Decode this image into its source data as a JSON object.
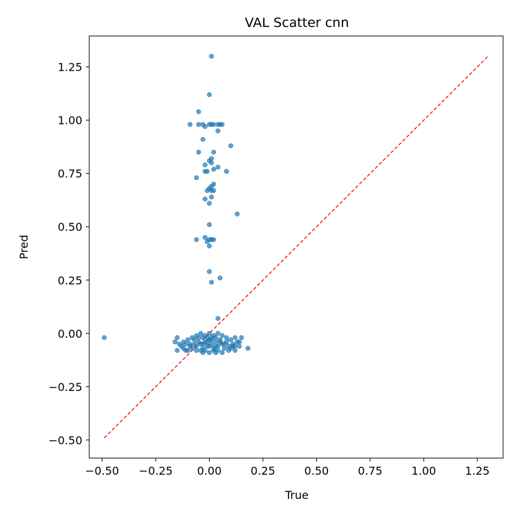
{
  "chart_data": {
    "type": "scatter",
    "title": "VAL Scatter cnn",
    "xlabel": "True",
    "ylabel": "Pred",
    "xlim": [
      -0.56,
      1.37
    ],
    "ylim": [
      -0.585,
      1.395
    ],
    "x_ticks": [
      -0.5,
      -0.25,
      0.0,
      0.25,
      0.5,
      0.75,
      1.0,
      1.25
    ],
    "x_tick_labels": [
      "−0.50",
      "−0.25",
      "0.00",
      "0.25",
      "0.50",
      "0.75",
      "1.00",
      "1.25"
    ],
    "y_ticks": [
      -0.5,
      -0.25,
      0.0,
      0.25,
      0.5,
      0.75,
      1.0,
      1.25
    ],
    "y_tick_labels": [
      "−0.50",
      "−0.25",
      "0.00",
      "0.25",
      "0.50",
      "0.75",
      "1.00",
      "1.25"
    ],
    "grid": false,
    "point_color": "#1f77b4",
    "reference_line": {
      "from": [
        -0.49,
        -0.49
      ],
      "to": [
        1.3,
        1.3
      ],
      "color": "#ff0000",
      "style": "dashed"
    },
    "series": [
      {
        "points": [
          [
            0.01,
            1.3
          ],
          [
            0.0,
            1.12
          ],
          [
            -0.05,
            1.04
          ],
          [
            -0.09,
            0.98
          ],
          [
            -0.05,
            0.98
          ],
          [
            -0.03,
            0.98
          ],
          [
            -0.02,
            0.97
          ],
          [
            0.0,
            0.98
          ],
          [
            0.01,
            0.98
          ],
          [
            0.02,
            0.98
          ],
          [
            0.04,
            0.98
          ],
          [
            0.05,
            0.98
          ],
          [
            0.06,
            0.98
          ],
          [
            0.04,
            0.95
          ],
          [
            -0.03,
            0.91
          ],
          [
            0.1,
            0.88
          ],
          [
            -0.05,
            0.85
          ],
          [
            0.02,
            0.85
          ],
          [
            0.0,
            0.81
          ],
          [
            0.01,
            0.82
          ],
          [
            0.01,
            0.8
          ],
          [
            -0.02,
            0.79
          ],
          [
            0.04,
            0.78
          ],
          [
            0.02,
            0.77
          ],
          [
            -0.02,
            0.76
          ],
          [
            -0.01,
            0.76
          ],
          [
            0.08,
            0.76
          ],
          [
            -0.06,
            0.73
          ],
          [
            0.02,
            0.7
          ],
          [
            0.01,
            0.69
          ],
          [
            0.0,
            0.68
          ],
          [
            -0.01,
            0.67
          ],
          [
            0.01,
            0.67
          ],
          [
            0.02,
            0.67
          ],
          [
            0.01,
            0.64
          ],
          [
            -0.02,
            0.63
          ],
          [
            0.0,
            0.61
          ],
          [
            0.13,
            0.56
          ],
          [
            0.0,
            0.51
          ],
          [
            -0.06,
            0.44
          ],
          [
            -0.02,
            0.45
          ],
          [
            -0.01,
            0.43
          ],
          [
            0.0,
            0.44
          ],
          [
            0.01,
            0.44
          ],
          [
            0.02,
            0.44
          ],
          [
            0.0,
            0.41
          ],
          [
            0.0,
            0.29
          ],
          [
            0.05,
            0.26
          ],
          [
            0.01,
            0.24
          ],
          [
            0.04,
            0.07
          ],
          [
            -0.49,
            -0.02
          ],
          [
            -0.16,
            -0.04
          ],
          [
            -0.15,
            -0.02
          ],
          [
            -0.13,
            -0.06
          ],
          [
            -0.12,
            -0.07
          ],
          [
            -0.11,
            -0.05
          ],
          [
            -0.1,
            -0.03
          ],
          [
            -0.09,
            -0.05
          ],
          [
            -0.08,
            -0.07
          ],
          [
            -0.07,
            -0.03
          ],
          [
            -0.06,
            -0.06
          ],
          [
            -0.05,
            -0.02
          ],
          [
            -0.04,
            -0.05
          ],
          [
            -0.03,
            -0.07
          ],
          [
            -0.02,
            -0.04
          ],
          [
            -0.01,
            -0.06
          ],
          [
            0.0,
            -0.03
          ],
          [
            0.01,
            -0.05
          ],
          [
            0.02,
            -0.07
          ],
          [
            0.03,
            -0.04
          ],
          [
            0.04,
            -0.06
          ],
          [
            0.05,
            -0.03
          ],
          [
            0.06,
            -0.05
          ],
          [
            0.07,
            -0.07
          ],
          [
            0.08,
            -0.04
          ],
          [
            0.09,
            -0.06
          ],
          [
            0.1,
            -0.03
          ],
          [
            0.11,
            -0.05
          ],
          [
            0.12,
            -0.02
          ],
          [
            0.13,
            -0.04
          ],
          [
            0.14,
            -0.06
          ],
          [
            0.15,
            -0.02
          ],
          [
            0.18,
            -0.07
          ],
          [
            -0.15,
            -0.08
          ],
          [
            -0.1,
            -0.08
          ],
          [
            -0.06,
            -0.08
          ],
          [
            -0.03,
            -0.09
          ],
          [
            0.0,
            -0.09
          ],
          [
            0.03,
            -0.09
          ],
          [
            0.06,
            -0.09
          ],
          [
            0.09,
            -0.08
          ],
          [
            0.12,
            -0.08
          ],
          [
            -0.04,
            0.0
          ],
          [
            -0.02,
            -0.01
          ],
          [
            0.0,
            0.0
          ],
          [
            0.02,
            -0.01
          ],
          [
            0.04,
            0.0
          ],
          [
            -0.01,
            -0.02
          ],
          [
            0.01,
            -0.02
          ],
          [
            0.03,
            -0.02
          ],
          [
            -0.03,
            -0.02
          ],
          [
            -0.08,
            -0.02
          ],
          [
            0.08,
            -0.02
          ],
          [
            0.06,
            -0.01
          ],
          [
            -0.06,
            -0.01
          ],
          [
            0.1,
            -0.07
          ],
          [
            -0.12,
            -0.04
          ],
          [
            -0.09,
            -0.06
          ],
          [
            0.11,
            -0.06
          ],
          [
            0.07,
            -0.05
          ],
          [
            -0.07,
            -0.05
          ],
          [
            -0.02,
            -0.08
          ],
          [
            0.02,
            -0.08
          ],
          [
            -0.05,
            -0.04
          ],
          [
            0.05,
            -0.04
          ],
          [
            0.0,
            -0.06
          ],
          [
            -0.01,
            -0.04
          ],
          [
            0.01,
            -0.03
          ],
          [
            0.03,
            -0.06
          ],
          [
            -0.03,
            -0.05
          ],
          [
            0.04,
            -0.08
          ],
          [
            -0.04,
            -0.08
          ],
          [
            0.12,
            -0.06
          ],
          [
            -0.11,
            -0.08
          ],
          [
            0.14,
            -0.04
          ],
          [
            -0.14,
            -0.05
          ]
        ]
      }
    ]
  }
}
